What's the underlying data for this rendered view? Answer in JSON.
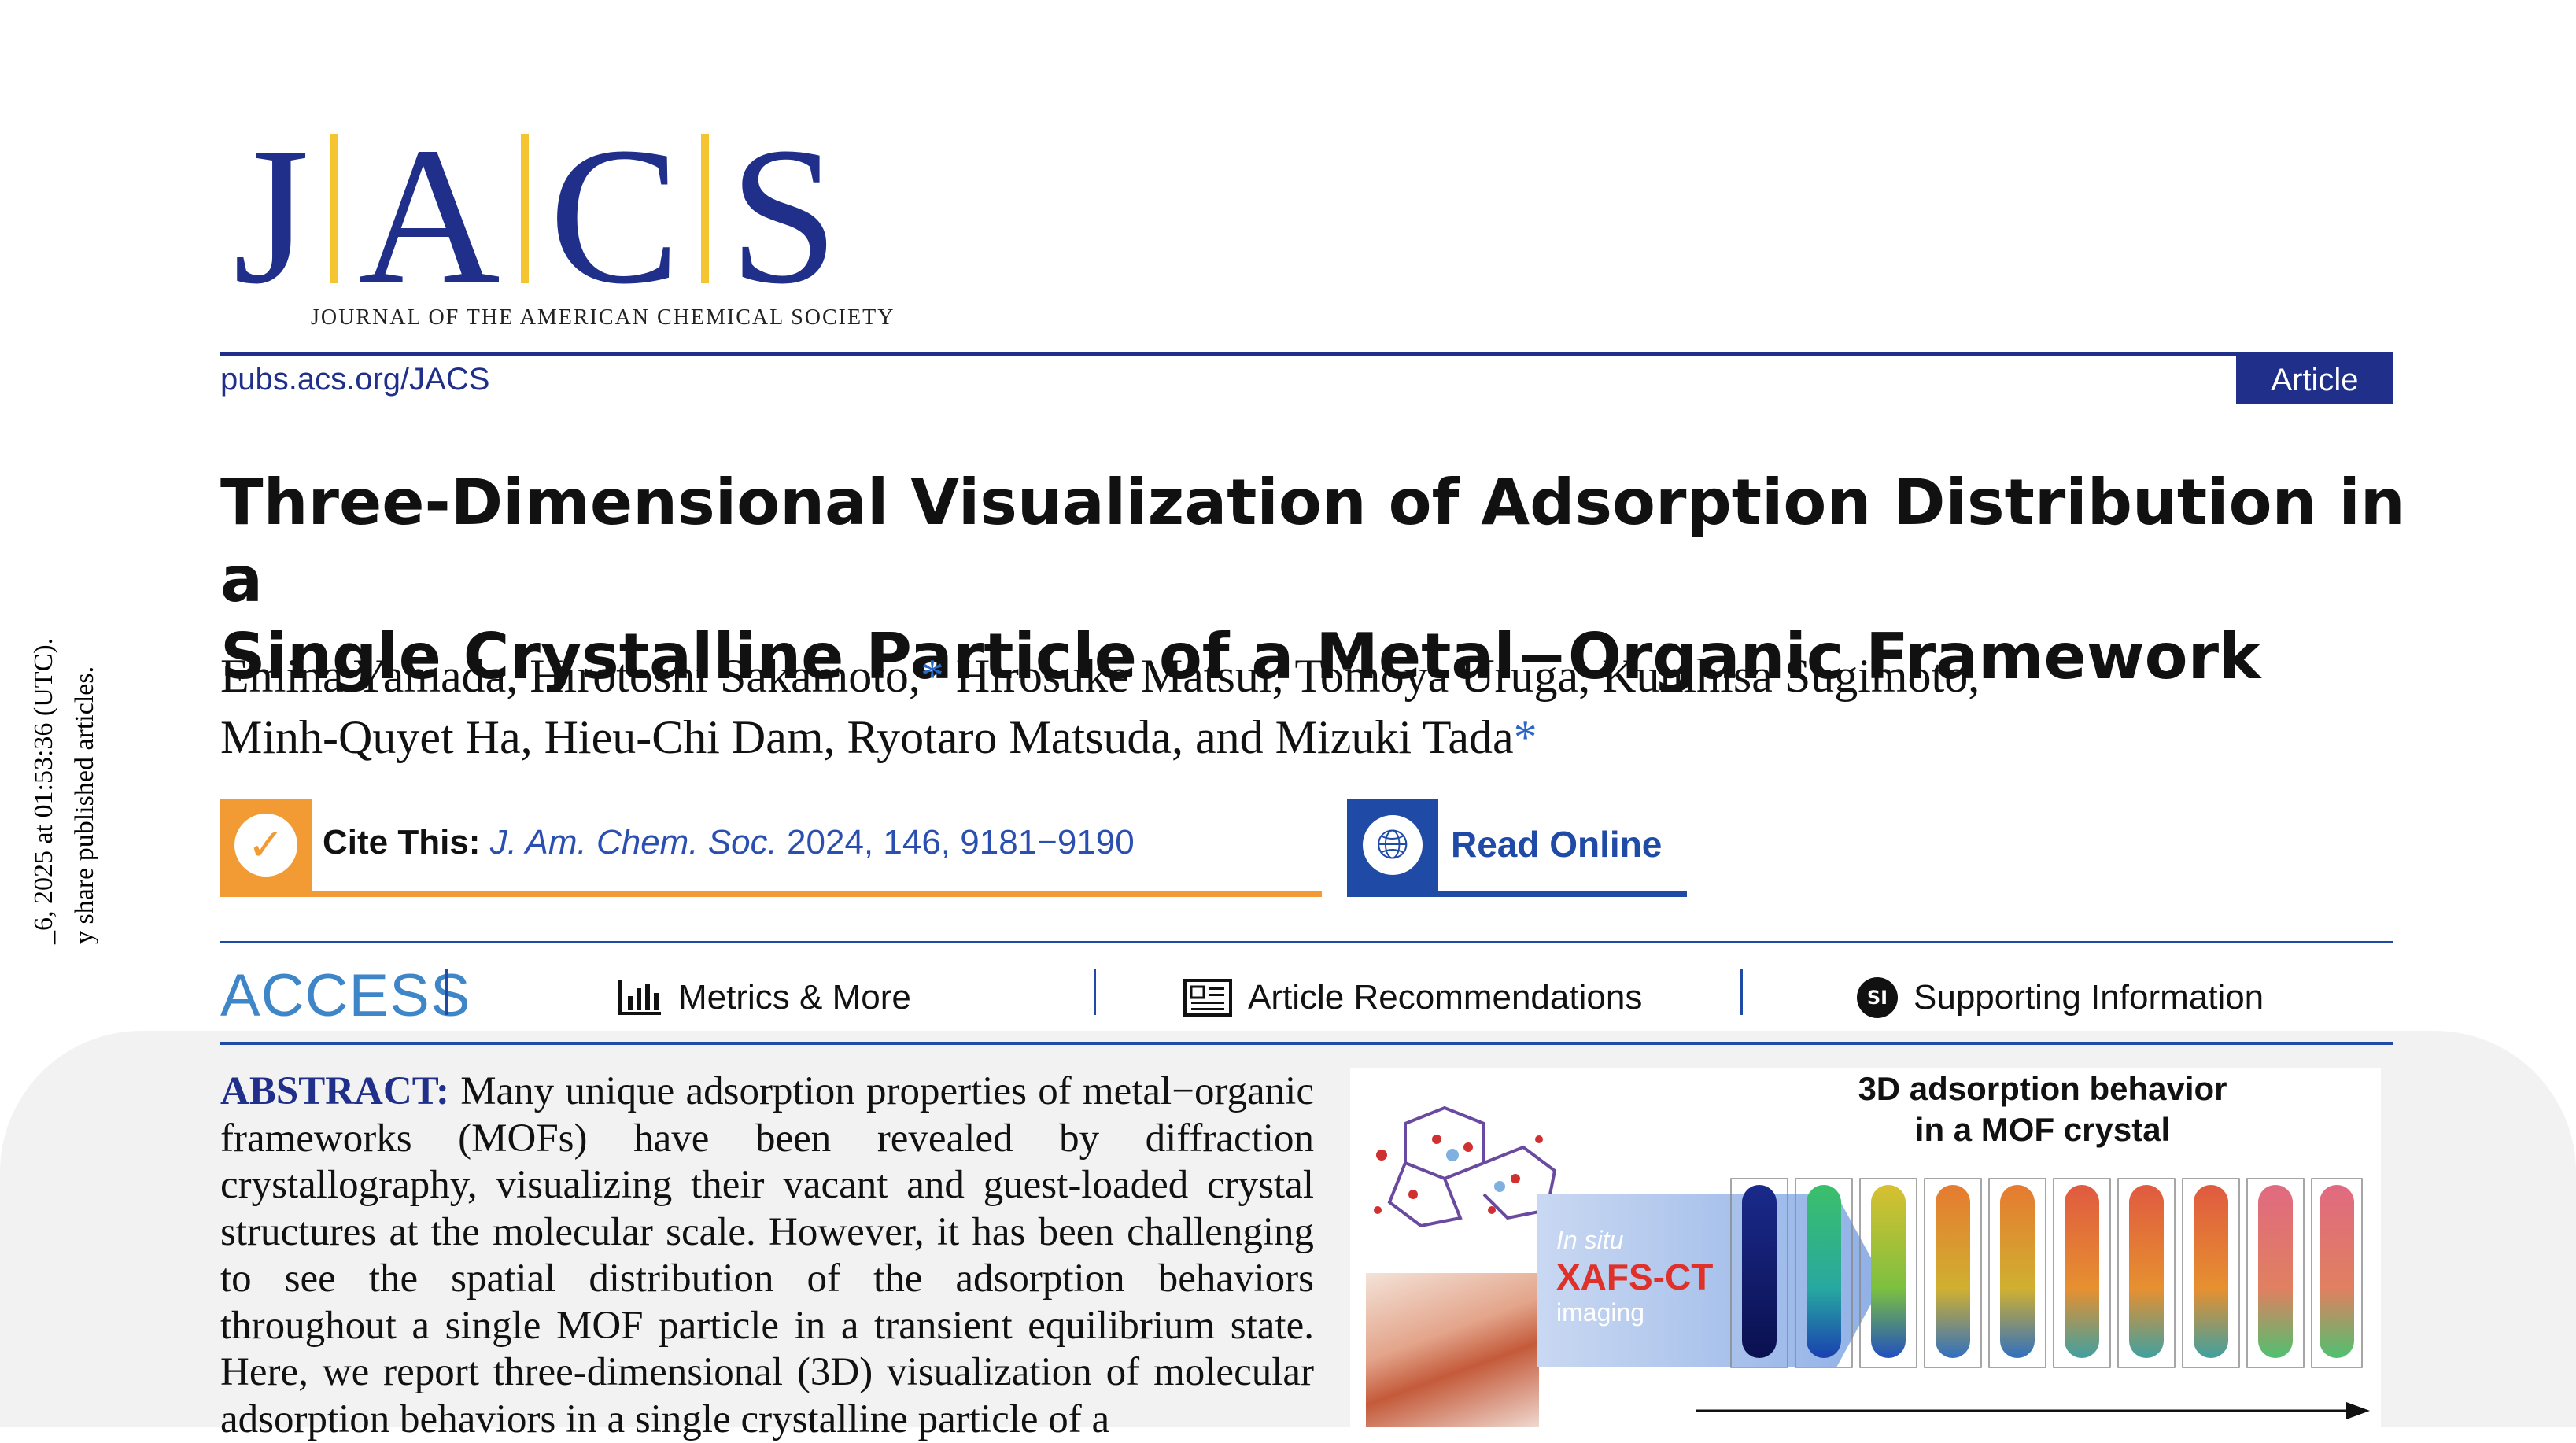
{
  "margin_note": {
    "line1": "_6, 2025 at 01:53:36 (UTC).",
    "line2": "y share published articles."
  },
  "journal": {
    "logo_letters": [
      "J",
      "A",
      "C",
      "S"
    ],
    "logo_subtitle": "JOURNAL OF THE AMERICAN CHEMICAL SOCIETY",
    "url": "pubs.acs.org/JACS",
    "article_type": "Article"
  },
  "paper": {
    "title_line1": "Three-Dimensional Visualization of Adsorption Distribution in a",
    "title_line2": "Single Crystalline Particle of a Metal−Organic Framework",
    "authors_line1": "Emina Yamada, Hirotoshi Sakamoto,",
    "authors_line1b": " Hirosuke Matsui, Tomoya Uruga, Kunihisa Sugimoto,",
    "authors_line2": "Minh-Quyet Ha, Hieu-Chi Dam, Ryotaro Matsuda, and Mizuki Tada",
    "corresponding_mark": "*"
  },
  "cite": {
    "label": "Cite This:",
    "journal_abbrev": "J. Am. Chem. Soc.",
    "details": " 2024, 146, 9181−9190",
    "icon": "checkmark-icon"
  },
  "read_online": {
    "label": "Read Online",
    "icon": "globe-icon"
  },
  "access_bar": {
    "label": "ACCESS",
    "metrics": "Metrics & More",
    "recommendations": "Article Recommendations",
    "supporting": "Supporting Information",
    "si_badge": "SI"
  },
  "abstract": {
    "lead": "ABSTRACT:",
    "text": " Many unique adsorption properties of metal−organic frameworks (MOFs) have been revealed by diffraction crystallography, visualizing their vacant and guest-loaded crystal structures at the molecular scale. However, it has been challenging to see the spatial distribution of the adsorption behaviors throughout a single MOF particle in a transient equilibrium state. Here, we report three-dimensional (3D) visualization of molecular adsorption behaviors in a single crystalline particle of a"
  },
  "toc_graphic": {
    "title_line1": "3D adsorption behavior",
    "title_line2": "in a MOF crystal",
    "insitu": "In situ",
    "method": "XAFS-CT",
    "imaging": "imaging"
  },
  "colors": {
    "jacs_blue": "#1f2f8a",
    "logo_gold": "#f4c531",
    "cite_orange": "#f29a33",
    "link_blue": "#2a4fb0",
    "access_blue": "#3f86c8",
    "xafs_red": "#e0302a"
  }
}
